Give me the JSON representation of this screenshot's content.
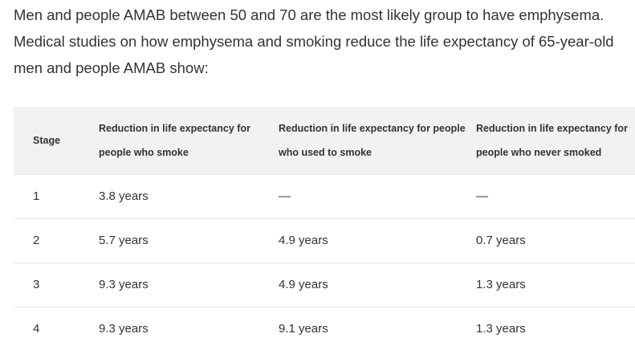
{
  "intro": {
    "text": "Men and people AMAB between 50 and 70 are the most likely group to have emphysema. Medical studies on how emphysema and smoking reduce the life expectancy of 65-year-old men and people AMAB show:"
  },
  "table": {
    "headers": [
      "Stage",
      "Reduction in life expectancy for people who smoke",
      "Reduction in life expectancy for people who used to smoke",
      "Reduction in life expectancy for people who never smoked"
    ],
    "rows": [
      [
        "1",
        "3.8 years",
        "—",
        "—"
      ],
      [
        "2",
        "5.7 years",
        "4.9 years",
        "0.7 years"
      ],
      [
        "3",
        "9.3 years",
        "4.9 years",
        "1.3 years"
      ],
      [
        "4",
        "9.3 years",
        "9.1 years",
        "1.3 years"
      ]
    ]
  }
}
